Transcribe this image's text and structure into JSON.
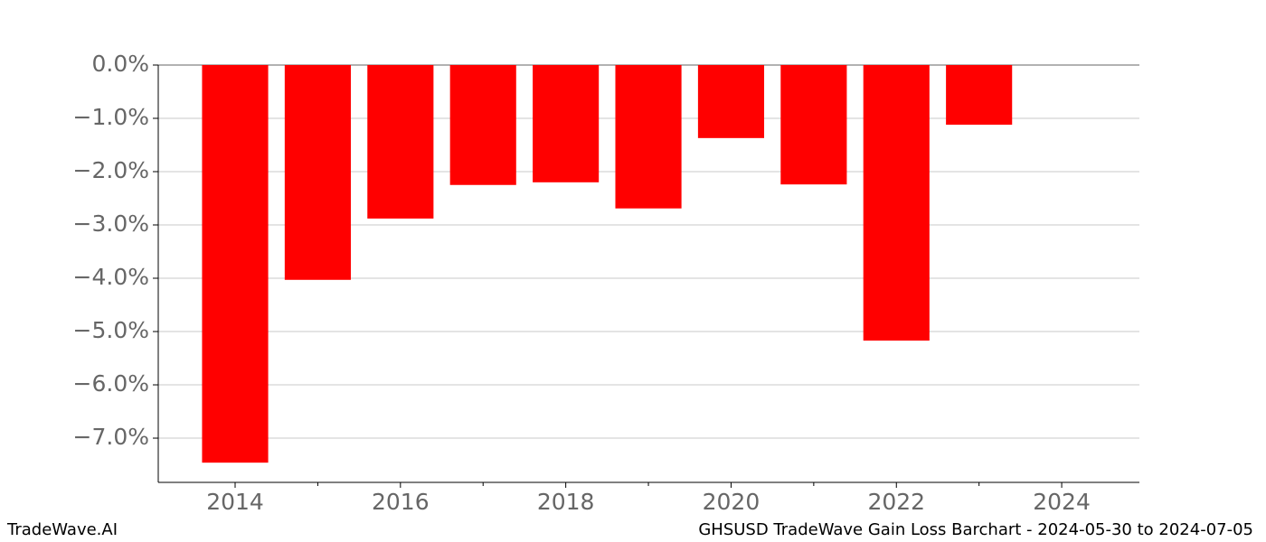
{
  "chart_data": {
    "type": "bar",
    "x": [
      2014,
      2015,
      2016,
      2017,
      2018,
      2019,
      2020,
      2021,
      2022,
      2023
    ],
    "values": [
      -7.46,
      -4.03,
      -2.88,
      -2.25,
      -2.2,
      -2.69,
      -1.37,
      -2.24,
      -5.17,
      -1.12
    ],
    "color": "#ff0000",
    "xlim": [
      2013.07,
      2024.94
    ],
    "xticks": [
      2014,
      2016,
      2018,
      2020,
      2022,
      2024
    ],
    "xminorticks": [
      2015,
      2017,
      2019,
      2021,
      2023
    ],
    "ylim": [
      -7.83,
      0
    ],
    "yticks": [
      {
        "value": 0,
        "label": "0.0%"
      },
      {
        "value": -1,
        "label": "−1.0%"
      },
      {
        "value": -2,
        "label": "−2.0%"
      },
      {
        "value": -3,
        "label": "−3.0%"
      },
      {
        "value": -4,
        "label": "−4.0%"
      },
      {
        "value": -5,
        "label": "−5.0%"
      },
      {
        "value": -6,
        "label": "−6.0%"
      },
      {
        "value": -7,
        "label": "−7.0%"
      }
    ],
    "grid": true,
    "footer_left": "TradeWave.AI",
    "footer_right": "GHSUSD TradeWave Gain Loss Barchart - 2024-05-30 to 2024-07-05"
  }
}
